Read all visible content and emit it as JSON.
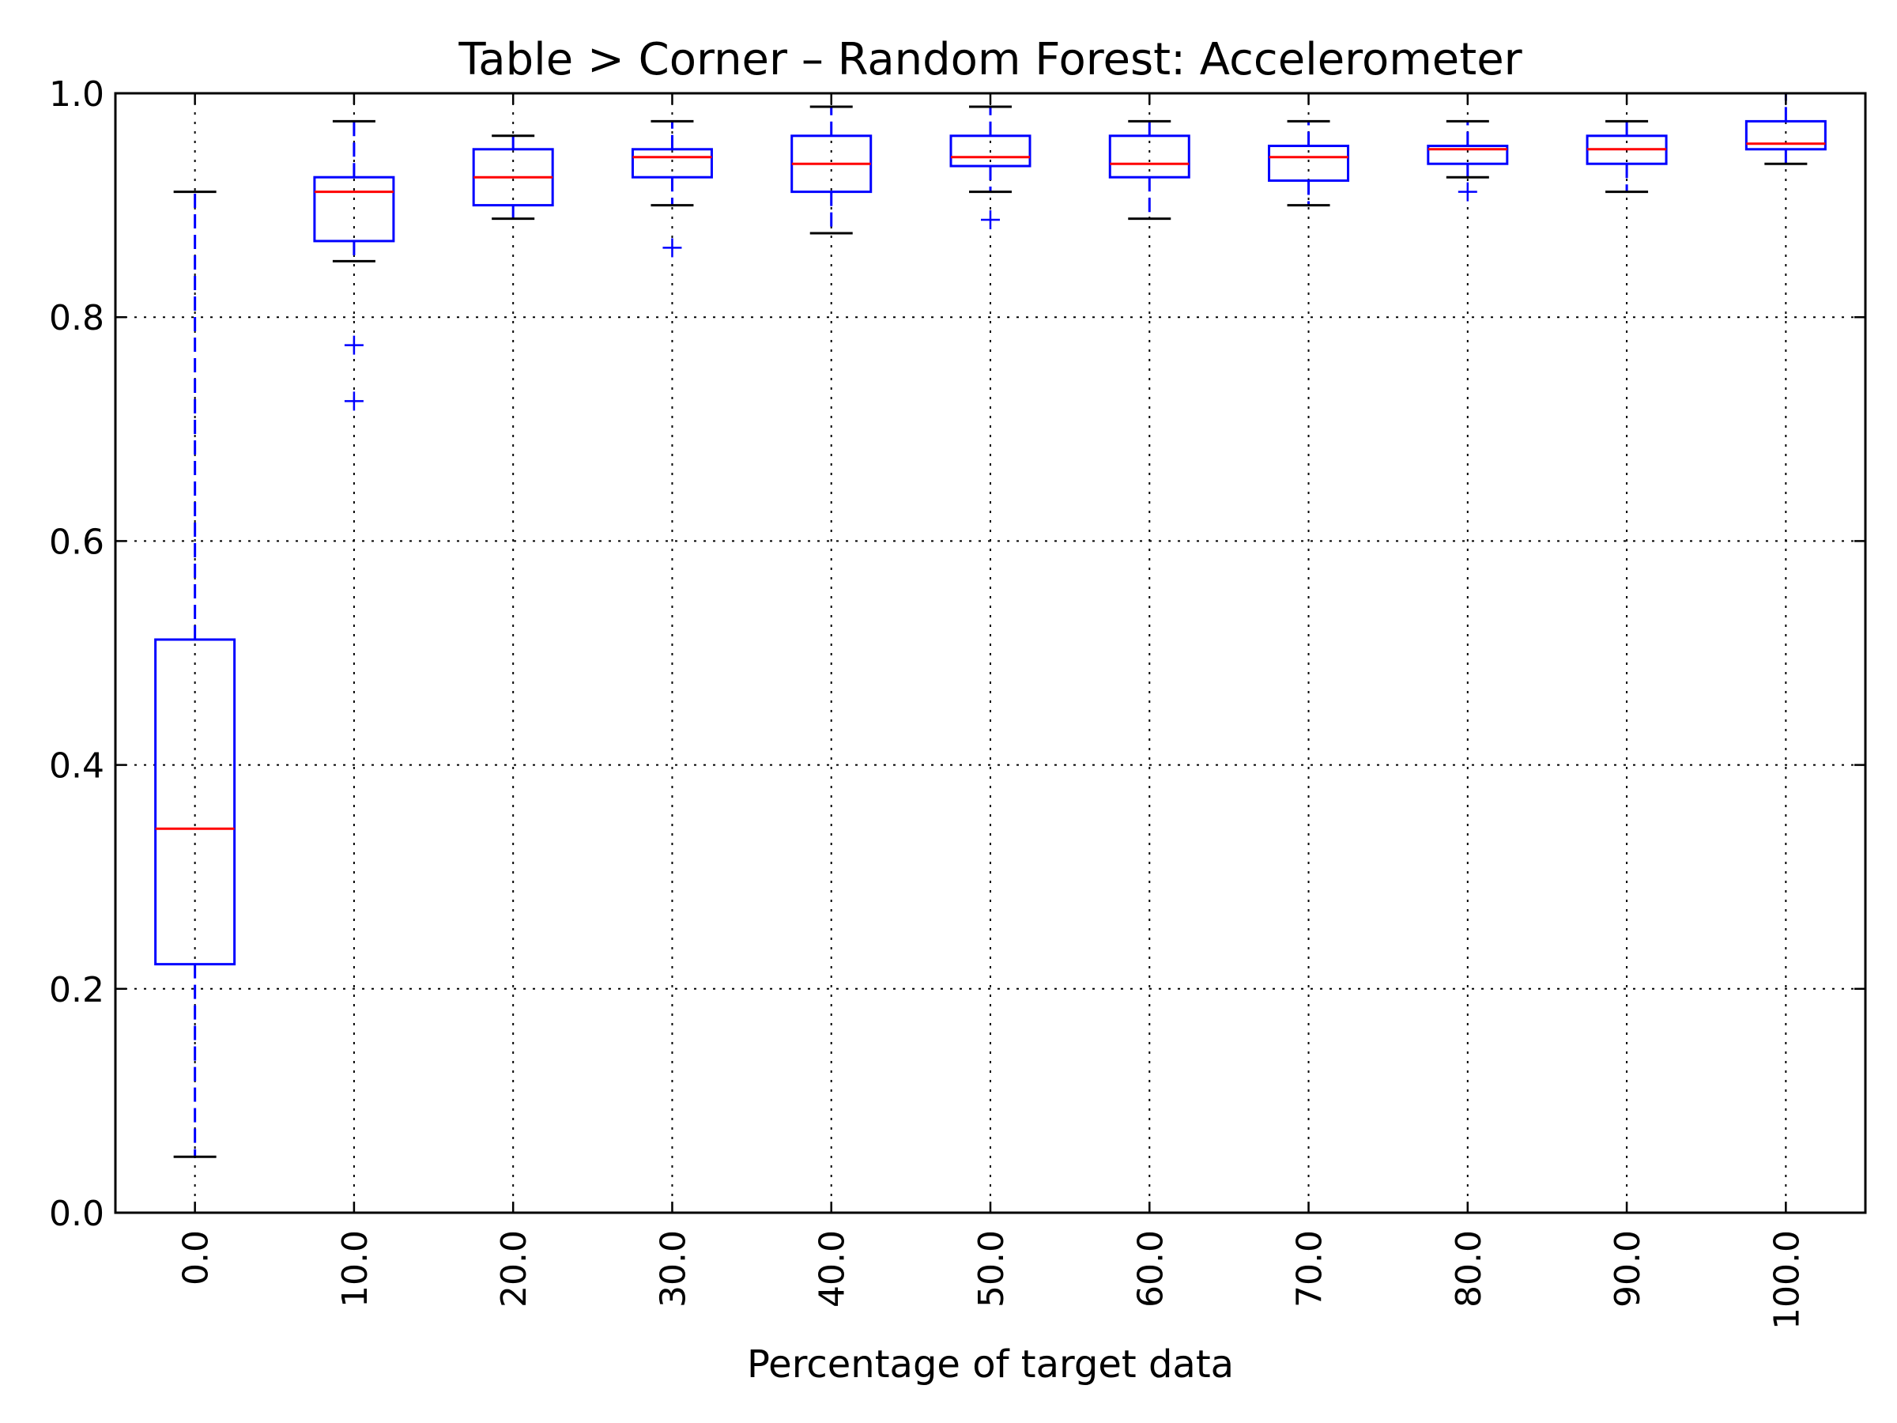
{
  "chart_data": {
    "type": "box",
    "title": "Table > Corner – Random Forest: Accelerometer",
    "xlabel": "Percentage of target data",
    "ylabel": "",
    "ylim": [
      0.0,
      1.0
    ],
    "yticks": [
      0.0,
      0.2,
      0.4,
      0.6,
      0.8,
      1.0
    ],
    "ytick_labels": [
      "0.0",
      "0.2",
      "0.4",
      "0.6",
      "0.8",
      "1.0"
    ],
    "grid": true,
    "categories": [
      "0.0",
      "10.0",
      "20.0",
      "30.0",
      "40.0",
      "50.0",
      "60.0",
      "70.0",
      "80.0",
      "90.0",
      "100.0"
    ],
    "boxes": [
      {
        "category": "0.0",
        "whisker_low": 0.05,
        "q1": 0.222,
        "median": 0.343,
        "q3": 0.512,
        "whisker_high": 0.912,
        "outliers": []
      },
      {
        "category": "10.0",
        "whisker_low": 0.85,
        "q1": 0.868,
        "median": 0.912,
        "q3": 0.925,
        "whisker_high": 0.975,
        "outliers": [
          0.775,
          0.725
        ]
      },
      {
        "category": "20.0",
        "whisker_low": 0.888,
        "q1": 0.9,
        "median": 0.925,
        "q3": 0.95,
        "whisker_high": 0.962,
        "outliers": []
      },
      {
        "category": "30.0",
        "whisker_low": 0.9,
        "q1": 0.925,
        "median": 0.943,
        "q3": 0.95,
        "whisker_high": 0.975,
        "outliers": [
          0.862
        ]
      },
      {
        "category": "40.0",
        "whisker_low": 0.875,
        "q1": 0.912,
        "median": 0.937,
        "q3": 0.962,
        "whisker_high": 0.988,
        "outliers": []
      },
      {
        "category": "50.0",
        "whisker_low": 0.912,
        "q1": 0.935,
        "median": 0.943,
        "q3": 0.962,
        "whisker_high": 0.988,
        "outliers": [
          0.887
        ]
      },
      {
        "category": "60.0",
        "whisker_low": 0.888,
        "q1": 0.925,
        "median": 0.937,
        "q3": 0.962,
        "whisker_high": 0.975,
        "outliers": []
      },
      {
        "category": "70.0",
        "whisker_low": 0.9,
        "q1": 0.922,
        "median": 0.943,
        "q3": 0.953,
        "whisker_high": 0.975,
        "outliers": []
      },
      {
        "category": "80.0",
        "whisker_low": 0.925,
        "q1": 0.937,
        "median": 0.95,
        "q3": 0.953,
        "whisker_high": 0.975,
        "outliers": [
          0.912
        ]
      },
      {
        "category": "90.0",
        "whisker_low": 0.912,
        "q1": 0.937,
        "median": 0.95,
        "q3": 0.962,
        "whisker_high": 0.975,
        "outliers": []
      },
      {
        "category": "100.0",
        "whisker_low": 0.937,
        "q1": 0.95,
        "median": 0.955,
        "q3": 0.975,
        "whisker_high": 1.0,
        "outliers": []
      }
    ],
    "colors": {
      "box": "#0000ff",
      "median": "#ff0000",
      "whisker_cap": "#000000",
      "outlier": "#0000ff",
      "grid": "#000000"
    }
  }
}
